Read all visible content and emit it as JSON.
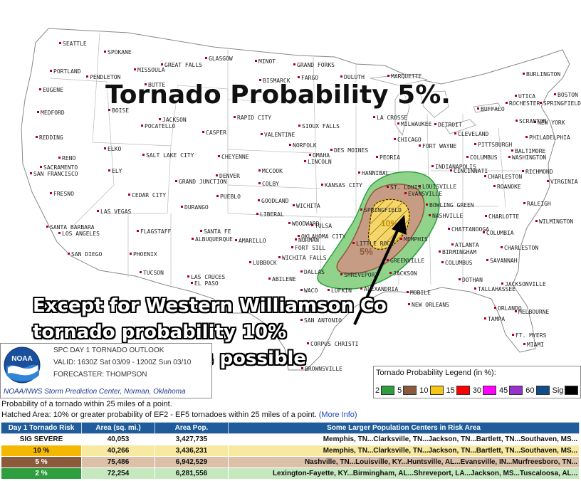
{
  "overlay": {
    "title": "Tornado Probability 5%.",
    "note_lines": [
      "Except for Western Williamson Co",
      "tornado probability 10%",
      "strong tornadoes possible"
    ]
  },
  "outlook_header": {
    "logo_text": "NOAA",
    "line1": "SPC DAY 1 TORNADO OUTLOOK",
    "line2": "VALID: 1630Z Sat 03/09 - 1200Z Sun 03/10",
    "line3": "FORECASTER: THOMPSON",
    "credit": "NOAA/NWS Storm Prediction Center, Norman, Oklahoma"
  },
  "legend": {
    "title": "Tornado Probability Legend (in %):",
    "items": [
      {
        "label": "2",
        "color": "#2e9e3e"
      },
      {
        "label": "5",
        "color": "#8b5a3c"
      },
      {
        "label": "10",
        "color": "#f5c518"
      },
      {
        "label": "15",
        "color": "#ff0000"
      },
      {
        "label": "30",
        "color": "#ff00ff"
      },
      {
        "label": "45",
        "color": "#9932cc"
      },
      {
        "label": "60",
        "color": "#104e8b"
      },
      {
        "label": "Sig",
        "color": "#000000"
      }
    ]
  },
  "description": {
    "line1": "Probability of a tornado within 25 miles of a point.",
    "line2": "Hatched Area: 10% or greater probability of EF2 - EF5 tornadoes within 25 miles of a point.",
    "more_info": "(More Info)"
  },
  "risk_table": {
    "headers": [
      "Day 1 Tornado Risk",
      "Area (sq. mi.)",
      "Area Pop.",
      "Some Larger Population Centers in Risk Area"
    ],
    "rows": [
      {
        "risk": "SIG SEVERE",
        "area": "40,053",
        "pop": "3,427,735",
        "centers": "Memphis, TN...Clarksville, TN...Jackson, TN...Bartlett, TN...Southaven, MS...",
        "bg": "#ffffff",
        "fg": "#111111"
      },
      {
        "risk": "10 %",
        "area": "40,266",
        "pop": "3,436,231",
        "centers": "Memphis, TN...Clarksville, TN...Jackson, TN...Bartlett, TN...Southaven, MS...",
        "bg": "#f7e9a0",
        "fg": "#111111",
        "risk_bg": "#f5b800"
      },
      {
        "risk": "5 %",
        "area": "75,486",
        "pop": "6,942,529",
        "centers": "Nashville, TN...Louisville, KY...Huntsville, AL...Evansville, IN...Murfreesboro, TN...",
        "bg": "#dcc1a8",
        "fg": "#111111",
        "risk_bg": "#8b5a3c",
        "risk_fg": "#ffffff"
      },
      {
        "risk": "2 %",
        "area": "72,254",
        "pop": "6,281,556",
        "centers": "Lexington-Fayette, KY...Birmingham, AL...Shreveport, LA...Jackson, MS...Tuscaloosa, AL...",
        "bg": "#c6e8bf",
        "fg": "#111111",
        "risk_bg": "#2e9e3e",
        "risk_fg": "#ffffff"
      }
    ]
  },
  "map": {
    "risk_labels": [
      {
        "text": "5%",
        "color": "#8b5a3c"
      },
      {
        "text": "10%",
        "color": "#c08a00"
      }
    ],
    "cities": [
      "SEATTLE",
      "SPOKANE",
      "PORTLAND",
      "PENDLETON",
      "MISSOULA",
      "BUTTE",
      "GREAT FALLS",
      "GLASGOW",
      "MINOT",
      "GRAND FORKS",
      "DULUTH",
      "MARQUETTE",
      "BURLINGTON",
      "EUGENE",
      "BOISE",
      "BISMARCK",
      "FARGO",
      "UTICA",
      "BOSTON",
      "MEDFORD",
      "JACKSON",
      "POCATELLO",
      "RAPID CITY",
      "LA CROSSE",
      "ROCHESTER",
      "BUFFALO",
      "SPRINGFIELD",
      "NEW YORK",
      "REDDING",
      "CASPER",
      "VALENTINE",
      "SIOUX FALLS",
      "MILWAUKEE",
      "DETROIT",
      "SCRANTON",
      "PHILADELPHIA",
      "RENO",
      "ELKO",
      "SALT LAKE CITY",
      "CHEYENNE",
      "NORFOLK",
      "OMAHA",
      "DES MOINES",
      "CHICAGO",
      "CLEVELAND",
      "PITTSBURGH",
      "BALTIMORE",
      "WASHINGTON",
      "SACRAMENTO",
      "SAN FRANCISCO",
      "ELY",
      "LINCOLN",
      "PEORIA",
      "FORT WAYNE",
      "COLUMBUS",
      "DENVER",
      "MCCOOK",
      "HANNIBAL",
      "INDIANAPOLIS",
      "CINCINNATI",
      "CHARLESTON",
      "RICHMOND",
      "VIRGINIA BEACH",
      "FRESNO",
      "CEDAR CITY",
      "GRAND JUNCTION",
      "PUEBLO",
      "GOODLAND",
      "KANSAS CITY",
      "ST. LOUIS",
      "LOUISVILLE",
      "EVANSVILLE",
      "ROANOKE",
      "LAS VEGAS",
      "DURANGO",
      "COLBY",
      "WICHITA",
      "SPRINGFIELD",
      "BOWLING GREEN",
      "RALEIGH",
      "SANTA BARBARA",
      "LOS ANGELES",
      "FLAGSTAFF",
      "SANTA FE",
      "ALBUQUERQUE",
      "LIBERAL",
      "WOODWARD",
      "TULSA",
      "NASHVILLE",
      "CHARLOTTE",
      "WILMINGTON",
      "AMARILLO",
      "OKLAHOMA CITY",
      "CHATTANOOGA",
      "COLUMBIA",
      "SAN DIEGO",
      "PHOENIX",
      "NORMAN",
      "FORT SILL",
      "LITTLE ROCK",
      "ATLANTA",
      "CHARLESTON",
      "LUBBOCK",
      "WICHITA FALLS",
      "MEMPHIS",
      "BIRMINGHAM",
      "SAVANNAH",
      "TUCSON",
      "LAS CRUCES",
      "EL PASO",
      "ABILENE",
      "DALLAS",
      "SHREVEPORT",
      "GREENVILLE",
      "JACKSON",
      "COLUMBUS",
      "DOTHAN",
      "TALLAHASSEE",
      "JACKSONVILLE",
      "WACO",
      "LUFKIN",
      "ALEXANDRIA",
      "MOBILE",
      "NEW ORLEANS",
      "ORLANDO",
      "MELBOURNE",
      "SAN ANTONIO",
      "TAMPA",
      "FT. MYERS",
      "CORPUS CHRISTI",
      "MIAMI",
      "BROWNSVILLE"
    ]
  }
}
